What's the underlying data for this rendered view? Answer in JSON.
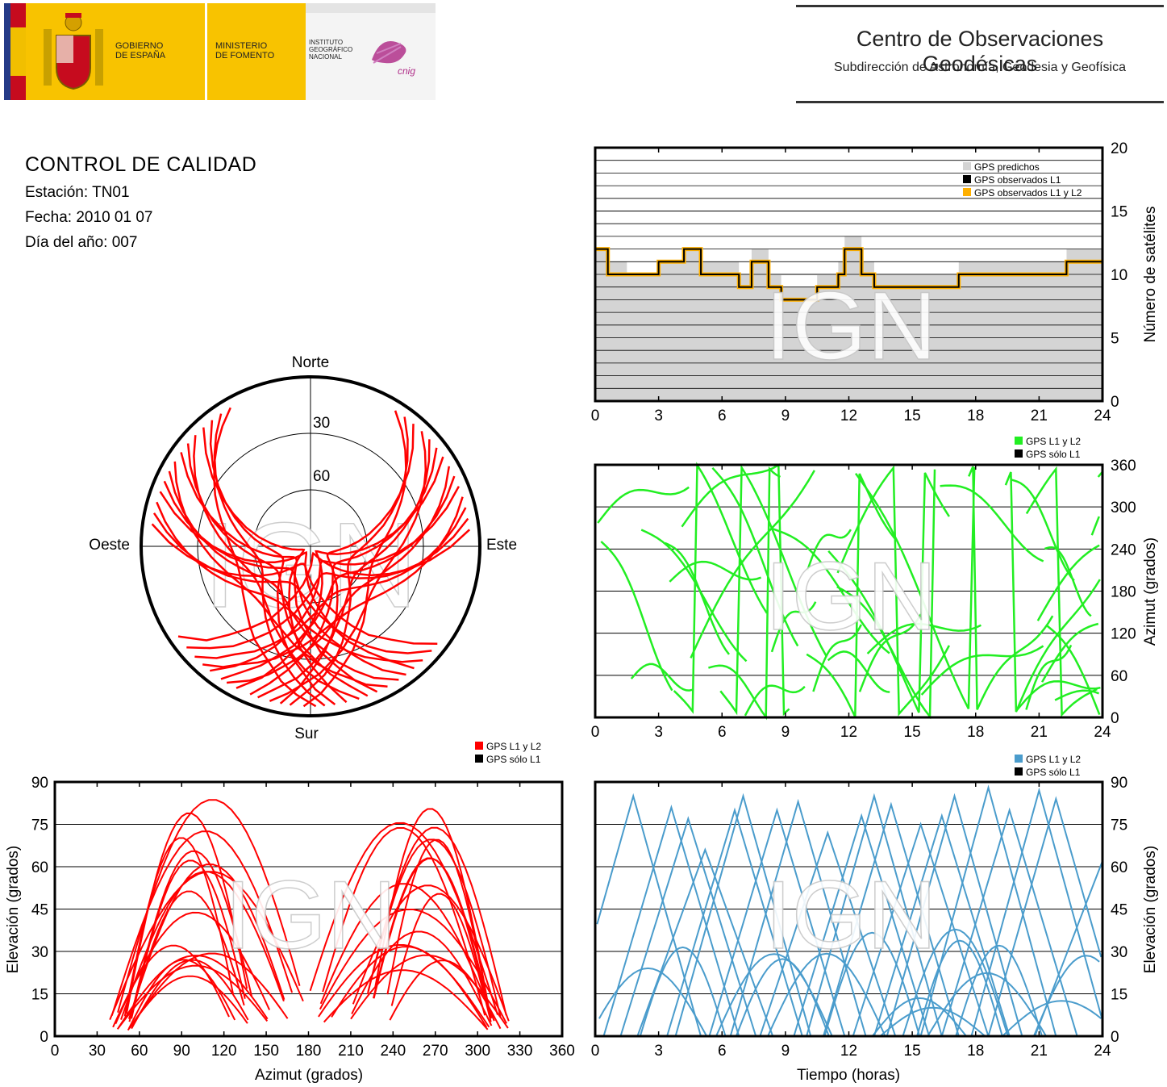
{
  "header": {
    "gobierno_line1": "GOBIERNO",
    "gobierno_line2": "DE ESPAÑA",
    "ministerio_line1": "MINISTERIO",
    "ministerio_line2": "DE FOMENTO",
    "instituto_line1": "INSTITUTO",
    "instituto_line2": "GEOGRÁFICO",
    "instituto_line3": "NACIONAL",
    "cnig_logo_text": "cnig",
    "centro_title": "Centro de Observaciones Geodésicas",
    "centro_subtitle": "Subdirección de Astronomía, Geodesia y Geofísica"
  },
  "info": {
    "title": "CONTROL DE CALIDAD",
    "estacion": "Estación: TN01",
    "fecha": "Fecha: 2010 01 07",
    "dia": "Día del año: 007"
  },
  "watermark": "IGN",
  "colors": {
    "red": "#ff0000",
    "green": "#22ee22",
    "blue": "#4a9ccc",
    "orange": "#ffb000",
    "grey": "#d4d4d4"
  },
  "chart_data": [
    {
      "type": "polar-skyplot",
      "labels": {
        "north": "Norte",
        "south": "Sur",
        "east": "Este",
        "west": "Oeste"
      },
      "ring_labels": [
        "30",
        "60"
      ],
      "rings": [
        30,
        60
      ],
      "series": [
        {
          "name": "GPS L1 y L2",
          "color": "#ff0000"
        }
      ]
    },
    {
      "type": "area",
      "ylabel": "Número de satélites",
      "xlim": [
        0,
        24
      ],
      "ylim": [
        0,
        20
      ],
      "xticks": [
        "0",
        "3",
        "6",
        "9",
        "12",
        "15",
        "18",
        "21",
        "24"
      ],
      "yticks": [
        "0",
        "5",
        "10",
        "15",
        "20"
      ],
      "legend": [
        "GPS predichos",
        "GPS observados L1",
        "GPS observados L1 y L2"
      ],
      "legend_position": "top-right",
      "predicted": [
        [
          0,
          12
        ],
        [
          0.6,
          11
        ],
        [
          1.5,
          10
        ],
        [
          3,
          11
        ],
        [
          4.2,
          12
        ],
        [
          5,
          11
        ],
        [
          6.8,
          10
        ],
        [
          7.4,
          12
        ],
        [
          8.2,
          10
        ],
        [
          8.8,
          9
        ],
        [
          10.5,
          10
        ],
        [
          11.5,
          11
        ],
        [
          11.8,
          13
        ],
        [
          12.6,
          11
        ],
        [
          13.2,
          10
        ],
        [
          16,
          10
        ],
        [
          17.2,
          11
        ],
        [
          18.5,
          11
        ],
        [
          20.5,
          11
        ],
        [
          21.5,
          11
        ],
        [
          22.3,
          12
        ],
        [
          24,
          12
        ]
      ],
      "observed": [
        [
          0,
          12
        ],
        [
          0.6,
          10
        ],
        [
          1.5,
          10
        ],
        [
          3,
          11
        ],
        [
          4.2,
          12
        ],
        [
          5,
          10
        ],
        [
          6.8,
          9
        ],
        [
          7.4,
          11
        ],
        [
          8.2,
          9
        ],
        [
          8.8,
          8
        ],
        [
          10.5,
          9
        ],
        [
          11.5,
          10
        ],
        [
          11.8,
          12
        ],
        [
          12.6,
          10
        ],
        [
          13.2,
          9
        ],
        [
          16,
          9
        ],
        [
          17.2,
          10
        ],
        [
          18.5,
          10
        ],
        [
          20.5,
          10
        ],
        [
          21.5,
          10
        ],
        [
          22.3,
          11
        ],
        [
          24,
          11
        ]
      ]
    },
    {
      "type": "scatter",
      "ylabel": "Azimut (grados)",
      "xlim": [
        0,
        24
      ],
      "ylim": [
        0,
        360
      ],
      "xticks": [
        "0",
        "3",
        "6",
        "9",
        "12",
        "15",
        "18",
        "21",
        "24"
      ],
      "yticks": [
        "0",
        "60",
        "120",
        "180",
        "240",
        "300",
        "360"
      ],
      "legend": [
        "GPS L1 y L2",
        "GPS sólo L1"
      ],
      "legend_position": "top-right"
    },
    {
      "type": "scatter",
      "xlabel": "Azimut (grados)",
      "ylabel": "Elevación (grados)",
      "xlim": [
        0,
        360
      ],
      "ylim": [
        0,
        90
      ],
      "xticks": [
        "0",
        "30",
        "60",
        "90",
        "120",
        "150",
        "180",
        "210",
        "240",
        "270",
        "300",
        "330",
        "360"
      ],
      "yticks": [
        "0",
        "15",
        "30",
        "45",
        "60",
        "75",
        "90"
      ],
      "legend": [
        "GPS L1 y L2",
        "GPS sólo L1"
      ],
      "legend_position": "top-right"
    },
    {
      "type": "line",
      "xlabel": "Tiempo (horas)",
      "ylabel": "Elevación (grados)",
      "xlim": [
        0,
        24
      ],
      "ylim": [
        0,
        90
      ],
      "xticks": [
        "0",
        "3",
        "6",
        "9",
        "12",
        "15",
        "18",
        "21",
        "24"
      ],
      "yticks": [
        "0",
        "15",
        "30",
        "45",
        "60",
        "75",
        "90"
      ],
      "legend": [
        "GPS L1 y L2",
        "GPS sólo L1"
      ],
      "legend_position": "top-right",
      "peaks": [
        [
          1.8,
          85
        ],
        [
          3.6,
          81
        ],
        [
          4.4,
          77
        ],
        [
          5.2,
          66
        ],
        [
          6.6,
          80
        ],
        [
          7.0,
          85
        ],
        [
          8.6,
          80
        ],
        [
          9.6,
          83
        ],
        [
          11.0,
          72
        ],
        [
          12.6,
          78
        ],
        [
          13.2,
          85
        ],
        [
          14.0,
          82
        ],
        [
          15.4,
          75
        ],
        [
          16.4,
          78
        ],
        [
          17.0,
          85
        ],
        [
          18.6,
          88
        ],
        [
          19.6,
          80
        ],
        [
          21.0,
          87
        ],
        [
          21.8,
          84
        ],
        [
          24.0,
          62
        ]
      ]
    }
  ]
}
